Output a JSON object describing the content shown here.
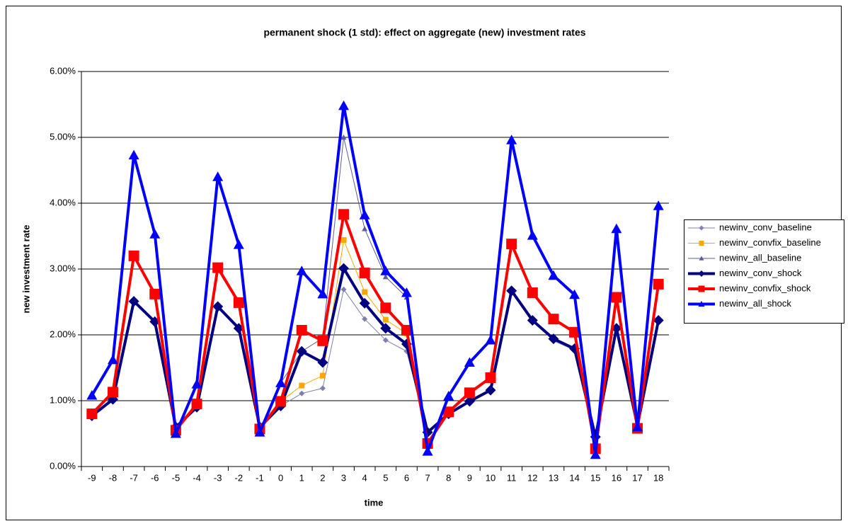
{
  "chart_data": {
    "type": "line",
    "title": "permanent shock (1 std): effect on aggregate (new) investment rates",
    "xlabel": "time",
    "ylabel": "new investment rate",
    "categories": [
      "-9",
      "-8",
      "-7",
      "-6",
      "-5",
      "-4",
      "-3",
      "-2",
      "-1",
      "0",
      "1",
      "2",
      "3",
      "4",
      "5",
      "6",
      "7",
      "8",
      "9",
      "10",
      "11",
      "12",
      "13",
      "14",
      "15",
      "16",
      "17",
      "18"
    ],
    "ylim": [
      0,
      6
    ],
    "yticks": [
      {
        "value": 0,
        "label": "0.00%"
      },
      {
        "value": 1,
        "label": "1.00%"
      },
      {
        "value": 2,
        "label": "2.00%"
      },
      {
        "value": 3,
        "label": "3.00%"
      },
      {
        "value": 4,
        "label": "4.00%"
      },
      {
        "value": 5,
        "label": "5.00%"
      },
      {
        "value": 6,
        "label": "6.00%"
      }
    ],
    "grid": true,
    "legend": "right",
    "series": [
      {
        "name": "newinv_conv_baseline",
        "color": "#7f7fb2",
        "marker": "diamond",
        "weight": "thin",
        "values": [
          0.77,
          1.02,
          2.51,
          2.2,
          0.6,
          0.9,
          2.43,
          2.1,
          0.6,
          0.92,
          1.11,
          1.19,
          2.69,
          2.24,
          1.92,
          1.75,
          0.52,
          0.8,
          0.99,
          1.16,
          2.67,
          2.22,
          1.91,
          1.77,
          0.45,
          2.1,
          0.62,
          2.22
        ]
      },
      {
        "name": "newinv_convfix_baseline",
        "color": "#ffa500",
        "marker": "square",
        "weight": "thin",
        "values": [
          0.8,
          1.13,
          3.2,
          2.62,
          0.55,
          0.95,
          3.02,
          2.49,
          0.57,
          0.99,
          1.23,
          1.38,
          3.44,
          2.65,
          2.23,
          2.02,
          0.35,
          0.83,
          1.12,
          1.35,
          3.38,
          2.62,
          2.22,
          2.03,
          0.27,
          2.57,
          0.58,
          2.77
        ]
      },
      {
        "name": "newinv_all_baseline",
        "color": "#5c5c9a",
        "marker": "triangle",
        "weight": "thin",
        "values": [
          1.08,
          1.62,
          4.73,
          3.53,
          0.5,
          1.25,
          4.4,
          3.37,
          0.52,
          1.27,
          1.75,
          1.95,
          5.0,
          3.61,
          2.88,
          2.57,
          0.23,
          1.07,
          1.58,
          1.92,
          4.96,
          3.51,
          2.88,
          2.6,
          0.18,
          3.61,
          0.6,
          3.96
        ]
      },
      {
        "name": "newinv_conv_shock",
        "color": "#000080",
        "marker": "diamond",
        "weight": "thick",
        "values": [
          0.77,
          1.02,
          2.51,
          2.2,
          0.6,
          0.9,
          2.43,
          2.1,
          0.6,
          0.92,
          1.75,
          1.58,
          3.01,
          2.48,
          2.1,
          1.86,
          0.52,
          0.8,
          0.99,
          1.16,
          2.67,
          2.22,
          1.94,
          1.79,
          0.45,
          2.1,
          0.62,
          2.22
        ]
      },
      {
        "name": "newinv_convfix_shock",
        "color": "#ff0000",
        "marker": "square",
        "weight": "thick",
        "values": [
          0.8,
          1.13,
          3.2,
          2.62,
          0.55,
          0.95,
          3.02,
          2.49,
          0.57,
          0.99,
          2.07,
          1.91,
          3.83,
          2.94,
          2.41,
          2.07,
          0.35,
          0.83,
          1.12,
          1.35,
          3.38,
          2.64,
          2.24,
          2.04,
          0.27,
          2.57,
          0.58,
          2.77
        ]
      },
      {
        "name": "newinv_all_shock",
        "color": "#0000ff",
        "marker": "triangle",
        "weight": "thick",
        "values": [
          1.08,
          1.62,
          4.73,
          3.53,
          0.5,
          1.25,
          4.4,
          3.37,
          0.52,
          1.27,
          2.97,
          2.62,
          5.48,
          3.82,
          2.97,
          2.64,
          0.23,
          1.07,
          1.58,
          1.92,
          4.96,
          3.51,
          2.9,
          2.61,
          0.18,
          3.61,
          0.6,
          3.96
        ]
      }
    ]
  }
}
